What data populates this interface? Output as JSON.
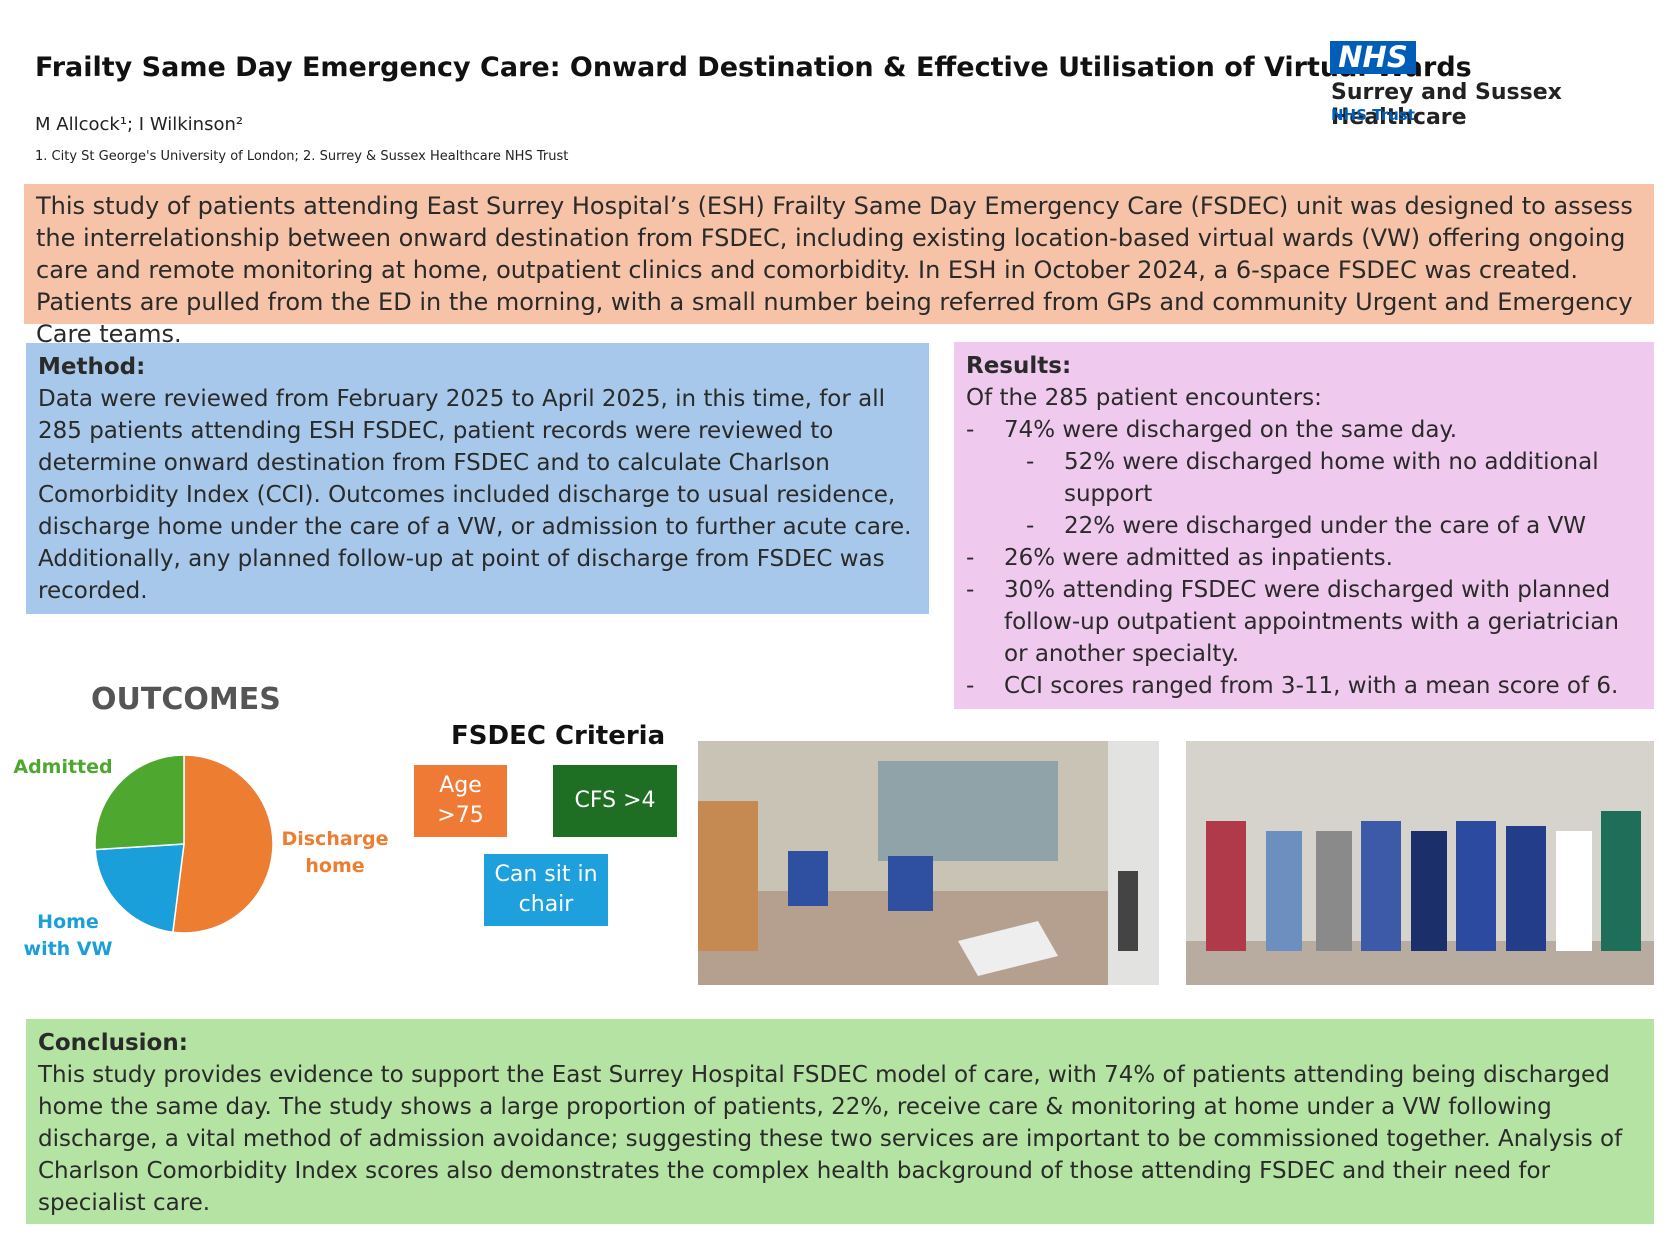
{
  "header": {
    "title": "Frailty Same Day Emergency Care: Onward Destination & Effective Utilisation of Virtual Wards",
    "authors": "M Allcock¹; I Wilkinson²",
    "affiliations": "1. City St George's University of London; 2. Surrey & Sussex Healthcare NHS Trust",
    "logo": {
      "mark": "NHS",
      "name": "Surrey and Sussex Healthcare",
      "subtitle": "NHS Trust"
    }
  },
  "intro": "This study of patients attending East Surrey Hospital’s (ESH) Frailty Same Day Emergency Care (FSDEC) unit was designed to assess the interrelationship between onward destination from FSDEC, including existing location-based virtual wards (VW) offering ongoing care and remote monitoring at home, outpatient clinics and comorbidity. In ESH in October 2024, a 6-space FSDEC was created. Patients are pulled from the ED in the morning, with a small number being referred from GPs and community Urgent and Emergency Care teams.",
  "method": {
    "heading": "Method:",
    "text": "Data were reviewed from February 2025 to April 2025, in this time, for all 285 patients attending ESH FSDEC, patient records were reviewed to determine onward destination from FSDEC and to calculate Charlson Comorbidity Index (CCI). Outcomes included discharge to usual residence, discharge home under the care of a VW, or admission to further acute care. Additionally, any planned follow-up at point of discharge from FSDEC was recorded."
  },
  "results": {
    "heading": "Results:",
    "intro": "Of the 285 patient encounters:",
    "bullet": "-",
    "items": [
      {
        "text": "74% were discharged on the same day.",
        "level": 1
      },
      {
        "text": "52% were discharged home with no additional support",
        "level": 2
      },
      {
        "text": "22% were discharged under the care of a VW",
        "level": 2
      },
      {
        "text": "26% were admitted as inpatients.",
        "level": 1
      },
      {
        "text": "30% attending FSDEC were discharged with planned follow-up outpatient appointments with a geriatrician or another specialty.",
        "level": 1
      },
      {
        "text": "CCI scores ranged from 3-11, with a mean score of 6.",
        "level": 1
      }
    ]
  },
  "chart_data": {
    "type": "pie",
    "title": "OUTCOMES",
    "categories": [
      "Discharge home",
      "Home with VW",
      "Admitted"
    ],
    "values": [
      52,
      22,
      26
    ],
    "colors": [
      "#ed7d31",
      "#1a9fdb",
      "#4ea72e"
    ]
  },
  "criteria": {
    "title": "FSDEC Criteria",
    "items": [
      "Age >75",
      "CFS >4",
      "Can sit in chair"
    ]
  },
  "conclusion": {
    "heading": "Conclusion:",
    "text": "This study provides evidence to support the East Surrey Hospital FSDEC model of care, with 74% of patients attending being discharged home the same day. The study shows a large proportion of patients, 22%, receive care & monitoring at home under a VW following discharge, a vital method of admission avoidance; suggesting these two services are important to be commissioned together. Analysis of Charlson Comorbidity Index scores also demonstrates the complex health background of those attending FSDEC and their need for specialist care."
  }
}
